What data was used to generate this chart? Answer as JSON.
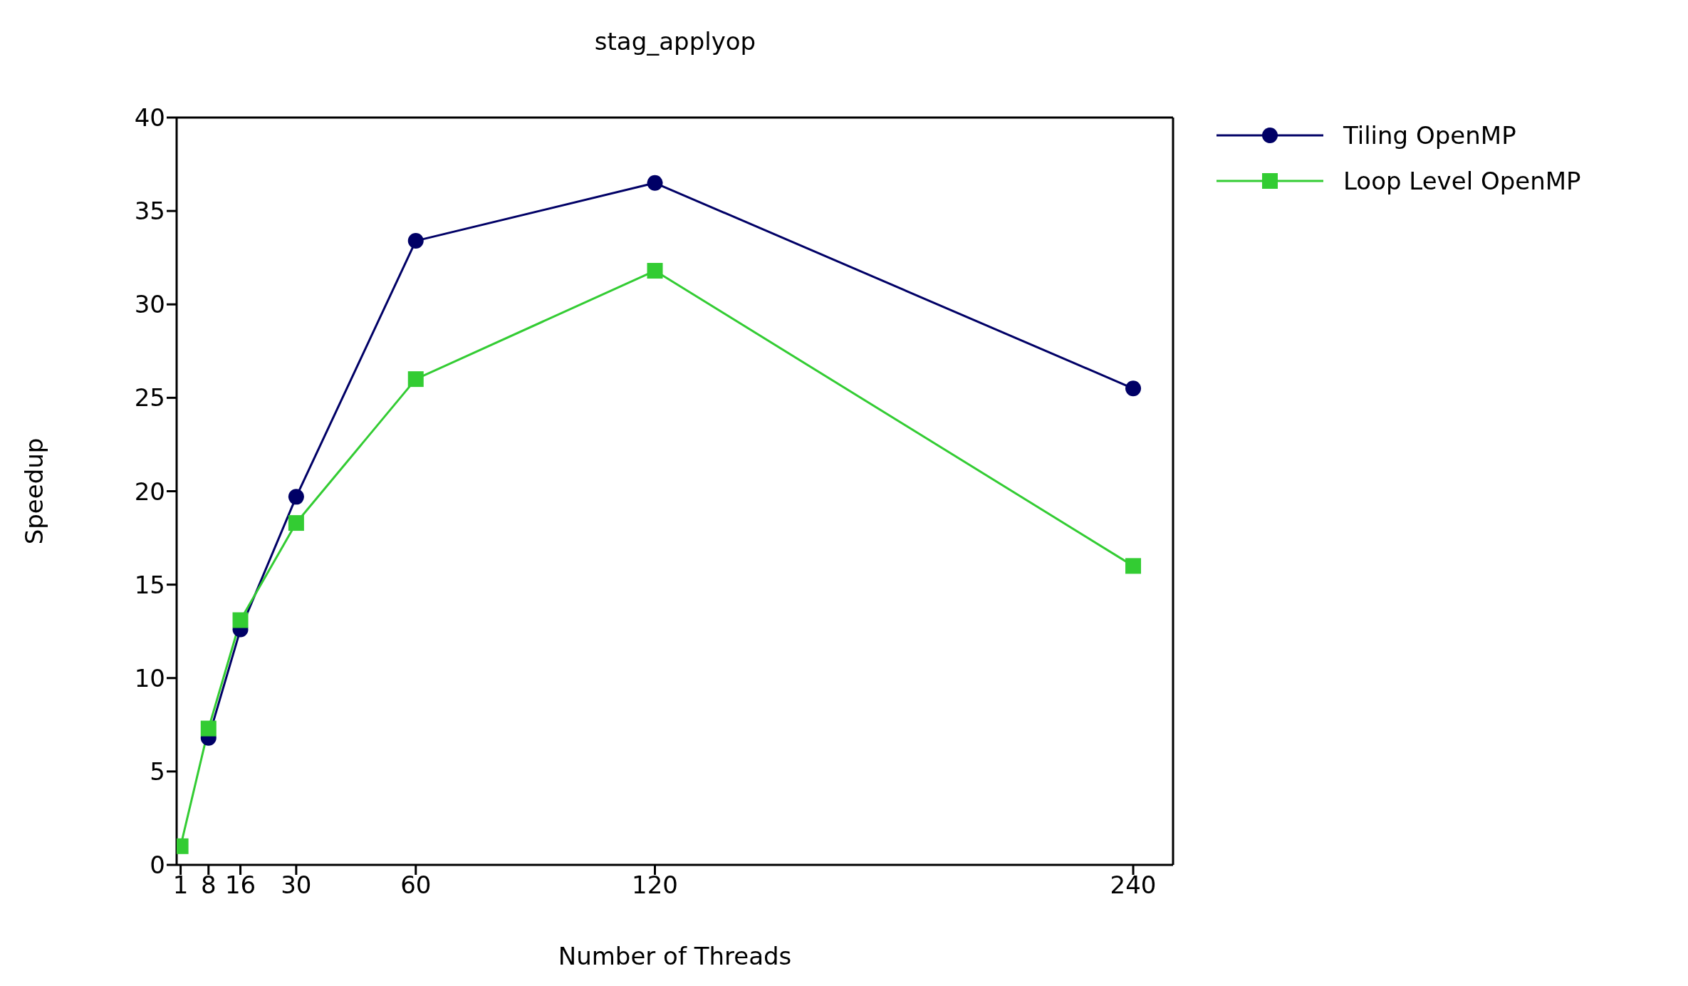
{
  "chart_data": {
    "type": "line",
    "title": "stag_applyop",
    "xlabel": "Number of Threads",
    "ylabel": "Speedup",
    "x": [
      1,
      8,
      16,
      30,
      60,
      120,
      240
    ],
    "xlim": [
      0,
      250
    ],
    "xticks": [
      1,
      8,
      16,
      30,
      60,
      120,
      240
    ],
    "ylim": [
      0,
      40
    ],
    "yticks": [
      0,
      5,
      10,
      15,
      20,
      25,
      30,
      35,
      40
    ],
    "grid": false,
    "legend": "top right",
    "line_style": "solid",
    "series": [
      {
        "name": "Tiling OpenMP",
        "color": "#000066",
        "marker": "circle",
        "values": [
          null,
          6.8,
          12.6,
          19.7,
          33.4,
          36.5,
          25.5
        ]
      },
      {
        "name": "Loop Level OpenMP",
        "color": "#33cc33",
        "marker": "square",
        "values": [
          1.0,
          7.3,
          13.1,
          18.3,
          26.0,
          31.8,
          16.0
        ]
      }
    ]
  }
}
